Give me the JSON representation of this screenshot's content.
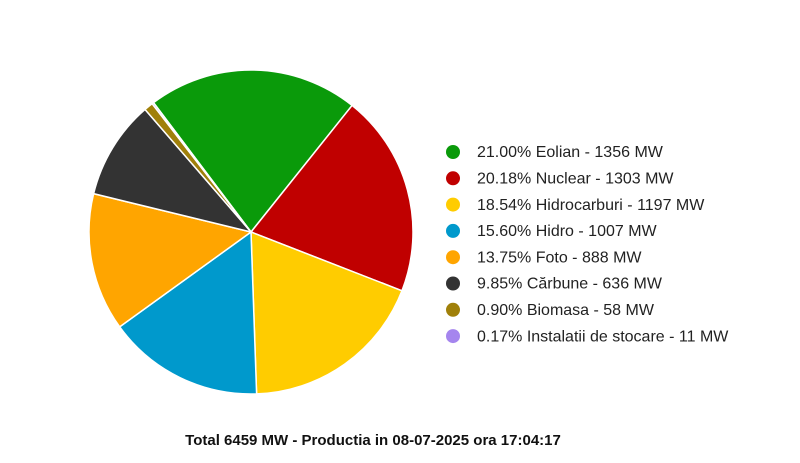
{
  "chart_data": {
    "type": "pie",
    "title": "Total 6459 MW - Productia in 08-07-2025 ora 17:04:17",
    "labels": [
      "21.00% Eolian - 1356 MW",
      "20.18% Nuclear - 1303 MW",
      "18.54% Hidrocarburi - 1197 MW",
      "15.60% Hidro - 1007 MW",
      "13.75% Foto - 888 MW",
      "9.85% Cărbune - 636 MW",
      "0.90% Biomasa - 58 MW",
      "0.17% Instalatii de stocare - 11 MW"
    ],
    "values": [
      1356,
      1303,
      1197,
      1007,
      888,
      636,
      58,
      11
    ],
    "colors": [
      "#0a9a0a",
      "#c00000",
      "#ffcc00",
      "#0099cc",
      "#ffa500",
      "#333333",
      "#a0800a",
      "#a585ee"
    ],
    "legend": "right"
  }
}
